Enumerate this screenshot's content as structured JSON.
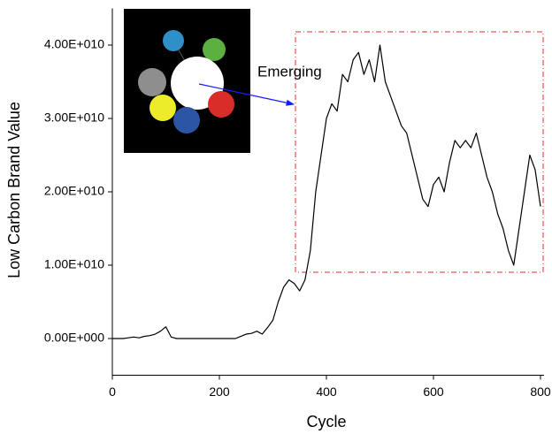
{
  "chart_data": {
    "type": "line",
    "x_label": "Cycle",
    "y_label": "Low Carbon Brand Value",
    "annotation": "Emerging",
    "color": "#000000",
    "x": [
      0,
      10,
      20,
      30,
      40,
      50,
      60,
      70,
      80,
      90,
      100,
      110,
      120,
      130,
      140,
      150,
      160,
      170,
      180,
      190,
      200,
      210,
      220,
      230,
      240,
      250,
      260,
      270,
      280,
      290,
      300,
      310,
      320,
      330,
      340,
      350,
      360,
      370,
      380,
      390,
      400,
      410,
      420,
      430,
      440,
      450,
      460,
      470,
      480,
      490,
      500,
      510,
      520,
      530,
      540,
      550,
      560,
      570,
      580,
      590,
      600,
      610,
      620,
      630,
      640,
      650,
      660,
      670,
      680,
      690,
      700,
      710,
      720,
      730,
      740,
      750,
      760,
      770,
      780,
      790,
      800
    ],
    "values": [
      0,
      0,
      0,
      100000000,
      200000000,
      100000000,
      300000000,
      400000000,
      600000000,
      1000000000,
      1600000000,
      200000000,
      0,
      0,
      0,
      0,
      0,
      0,
      0,
      0,
      0,
      0,
      0,
      0,
      300000000,
      600000000,
      700000000,
      1000000000,
      600000000,
      1500000000,
      2500000000,
      5000000000,
      7000000000,
      8000000000,
      7500000000,
      6500000000,
      8000000000,
      12000000000,
      20000000000,
      25000000000,
      30000000000,
      32000000000,
      31000000000,
      36000000000,
      35000000000,
      38000000000,
      39000000000,
      36000000000,
      38000000000,
      35000000000,
      40000000000,
      35000000000,
      33000000000,
      31000000000,
      29000000000,
      28000000000,
      25000000000,
      22000000000,
      19000000000,
      18000000000,
      21000000000,
      22000000000,
      20000000000,
      24000000000,
      27000000000,
      26000000000,
      27000000000,
      26000000000,
      28000000000,
      25000000000,
      22000000000,
      20000000000,
      17000000000,
      15000000000,
      12000000000,
      10000000000,
      15000000000,
      20000000000,
      25000000000,
      23000000000,
      18000000000
    ],
    "xlim": [
      0,
      800
    ],
    "xticks": [
      0,
      200,
      400,
      600,
      800
    ],
    "ylim": [
      -5000000000,
      45000000000
    ],
    "yticks": [
      {
        "value": 0,
        "label": "0.00E+000"
      },
      {
        "value": 10000000000,
        "label": "1.00E+010"
      },
      {
        "value": 20000000000,
        "label": "2.00E+010"
      },
      {
        "value": 30000000000,
        "label": "3.00E+010"
      },
      {
        "value": 40000000000,
        "label": "4.00E+010"
      }
    ]
  }
}
